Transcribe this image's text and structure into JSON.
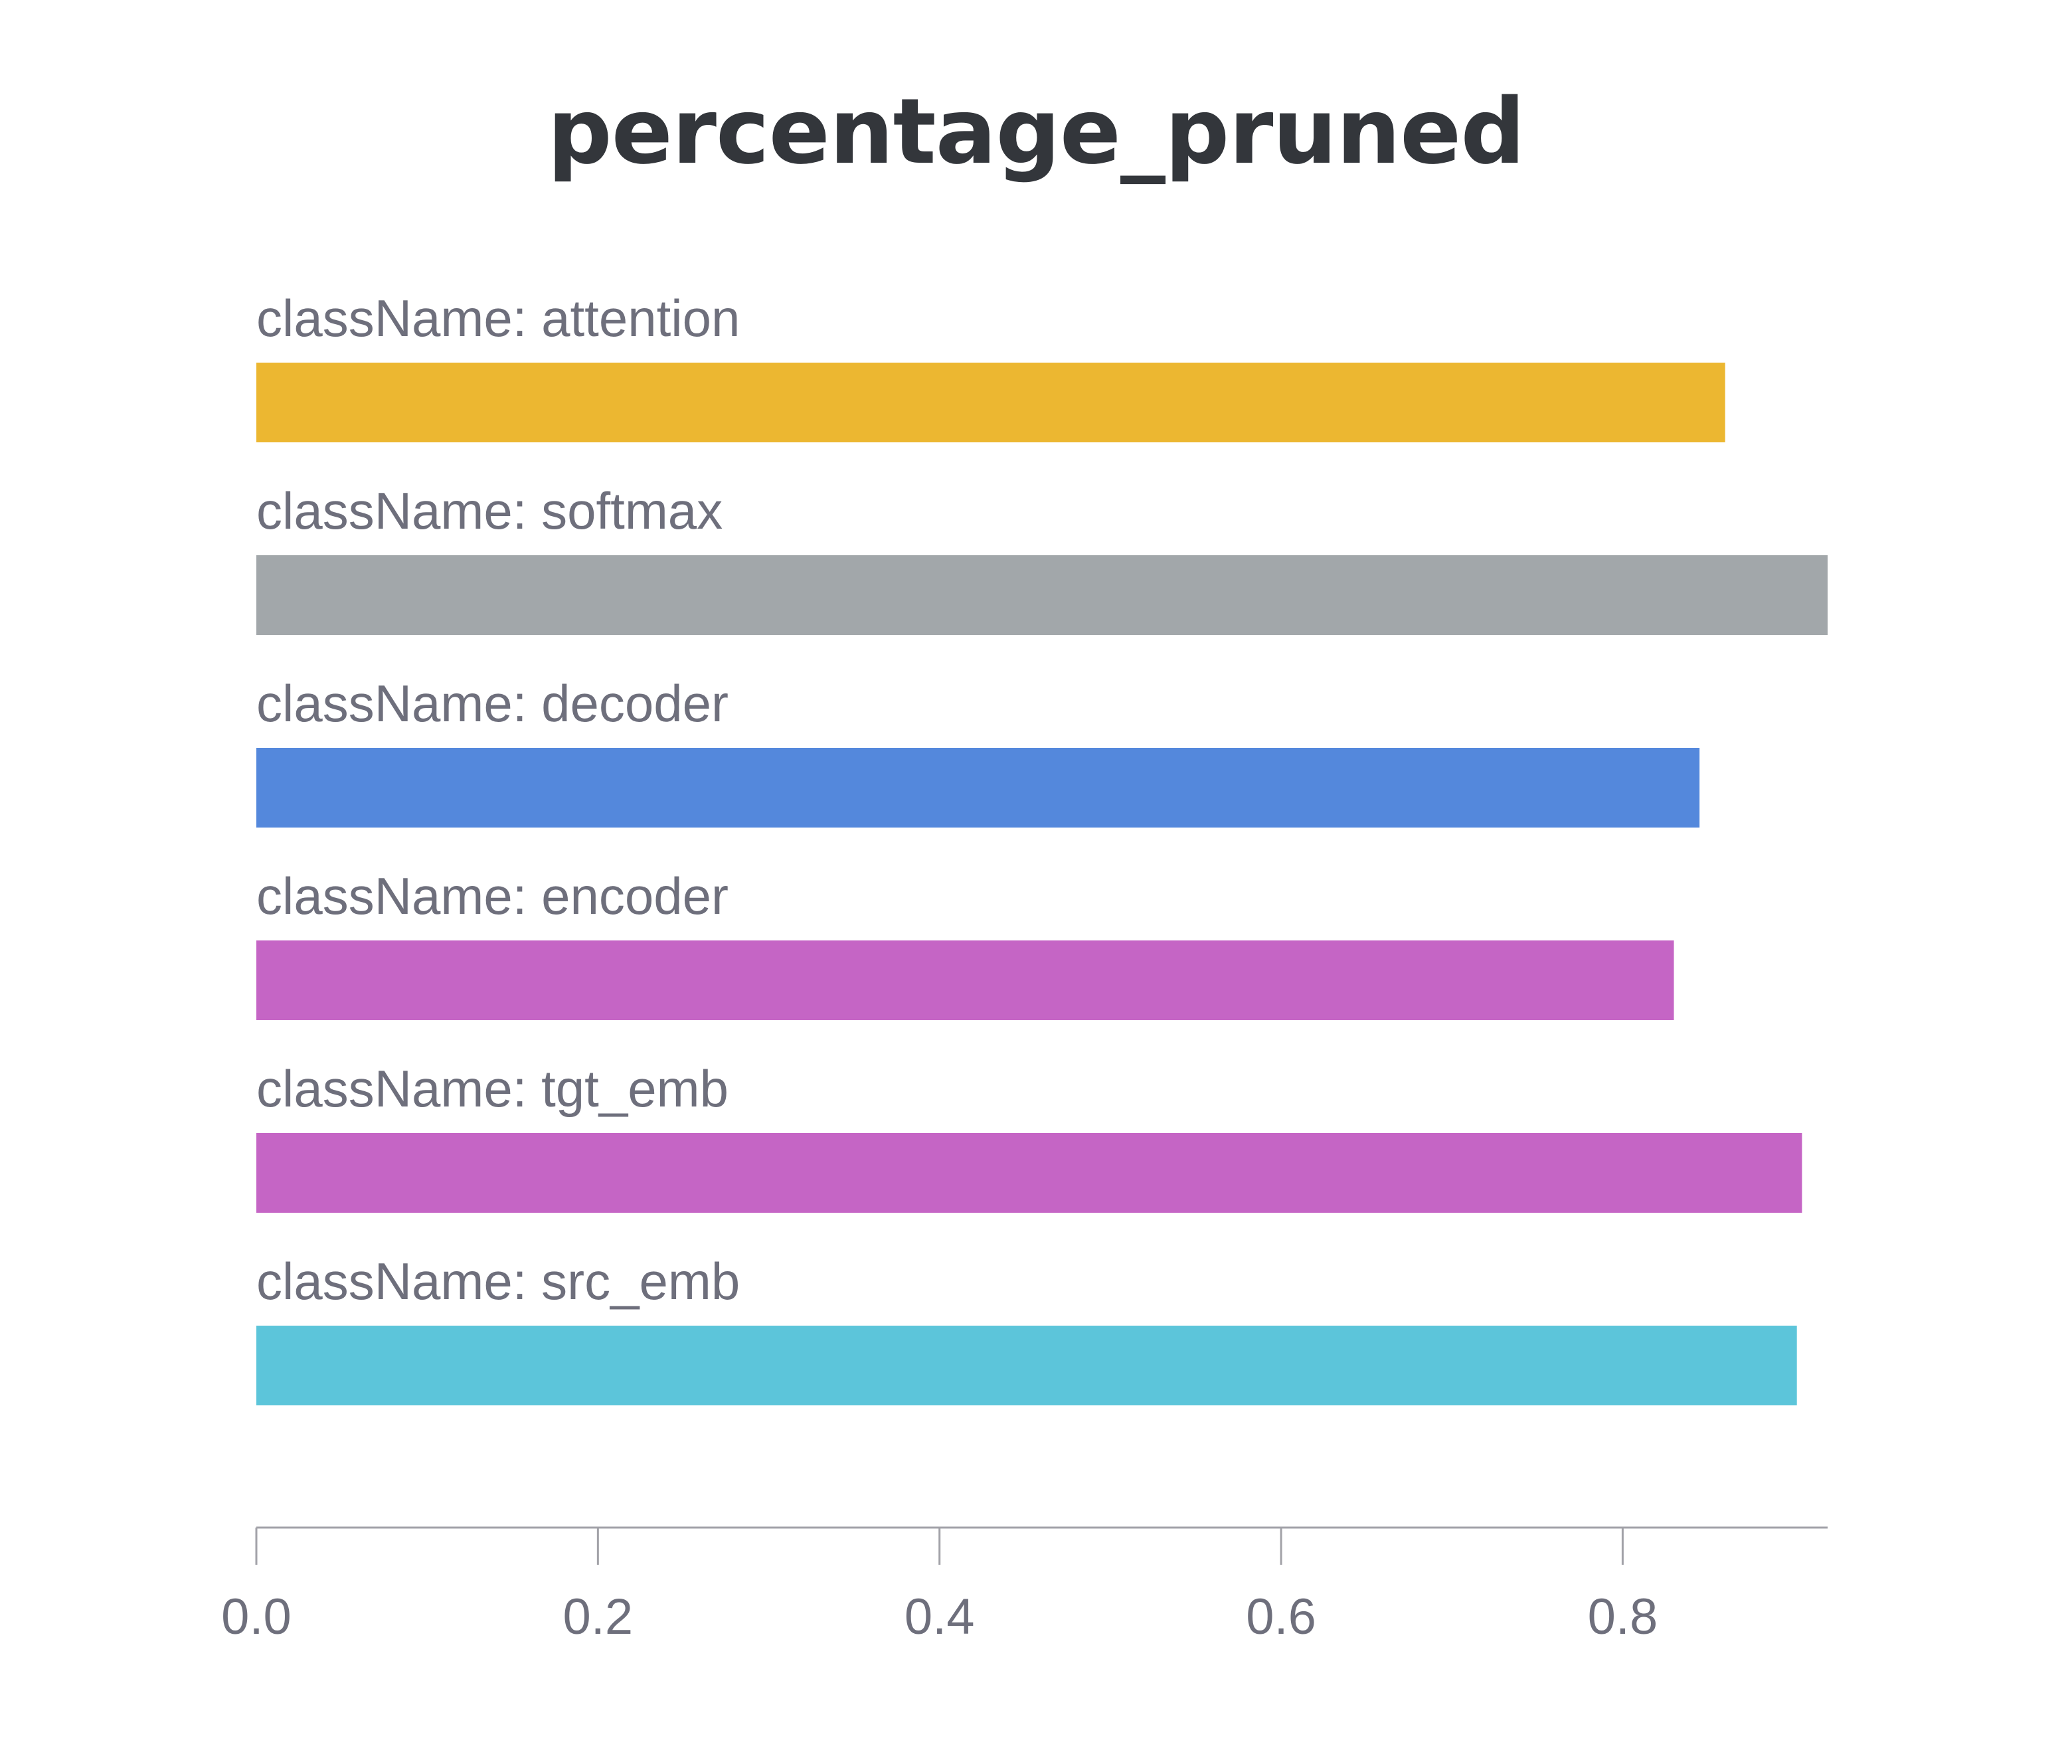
{
  "chart_data": {
    "type": "bar",
    "orientation": "horizontal",
    "title": "percentage_pruned",
    "xlabel": "",
    "ylabel": "",
    "categories": [
      "className: attention",
      "className: softmax",
      "className: decoder",
      "className: encoder",
      "className: tgt_emb",
      "className: src_emb"
    ],
    "values": [
      0.86,
      0.92,
      0.845,
      0.83,
      0.905,
      0.902
    ],
    "colors": [
      "#ecb731",
      "#a2a7aa",
      "#5488dc",
      "#c565c5",
      "#c565c5",
      "#5cc5da"
    ],
    "xlim": [
      0,
      0.92
    ],
    "x_ticks": [
      0.0,
      0.2,
      0.4,
      0.6,
      0.8
    ],
    "x_tick_labels": [
      "0.0",
      "0.2",
      "0.4",
      "0.6",
      "0.8"
    ],
    "grid": false,
    "legend": "none"
  }
}
